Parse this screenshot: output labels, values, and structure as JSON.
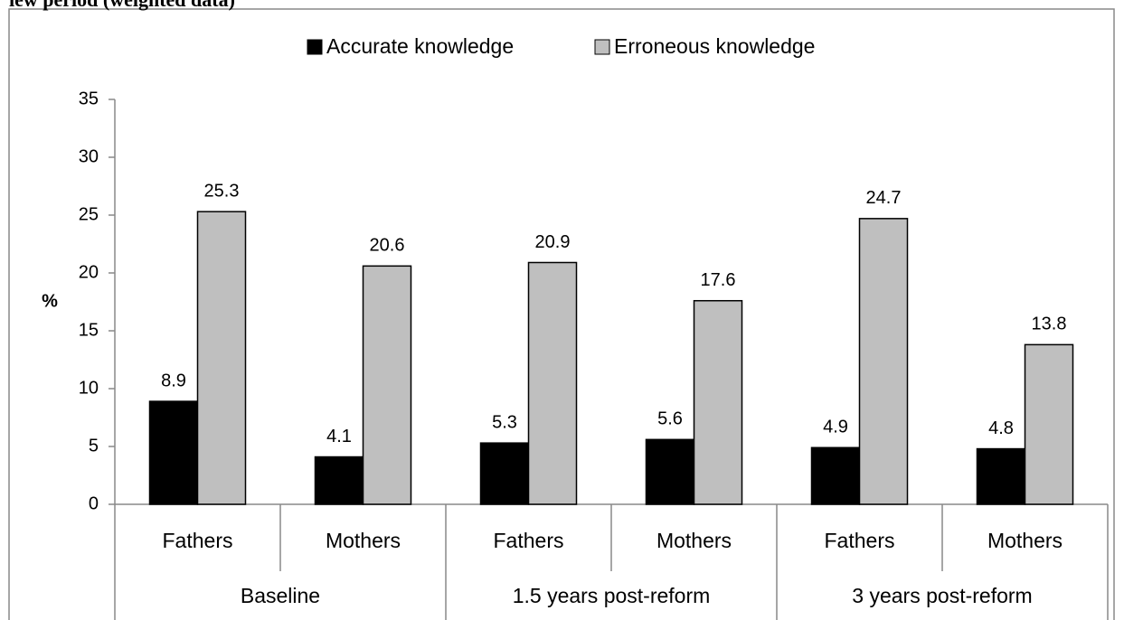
{
  "chart_data": {
    "type": "bar",
    "title": "iew period (weighted data)",
    "ylabel": "%",
    "categories": [
      "Fathers",
      "Mothers",
      "Fathers",
      "Mothers",
      "Fathers",
      "Mothers"
    ],
    "groups": [
      "Baseline",
      "1.5 years post-reform",
      "3 years post-reform"
    ],
    "series": [
      {
        "name": "Accurate knowledge",
        "color": "#000000",
        "values": [
          8.9,
          4.1,
          5.3,
          5.6,
          4.9,
          4.8
        ]
      },
      {
        "name": "Erroneous knowledge",
        "color": "#bfbfbf",
        "values": [
          25.3,
          20.6,
          20.9,
          17.6,
          24.7,
          13.8
        ]
      }
    ],
    "ylim": [
      0,
      35
    ],
    "yticks": [
      0,
      5,
      10,
      15,
      20,
      25,
      30,
      35
    ],
    "legend": "top"
  }
}
